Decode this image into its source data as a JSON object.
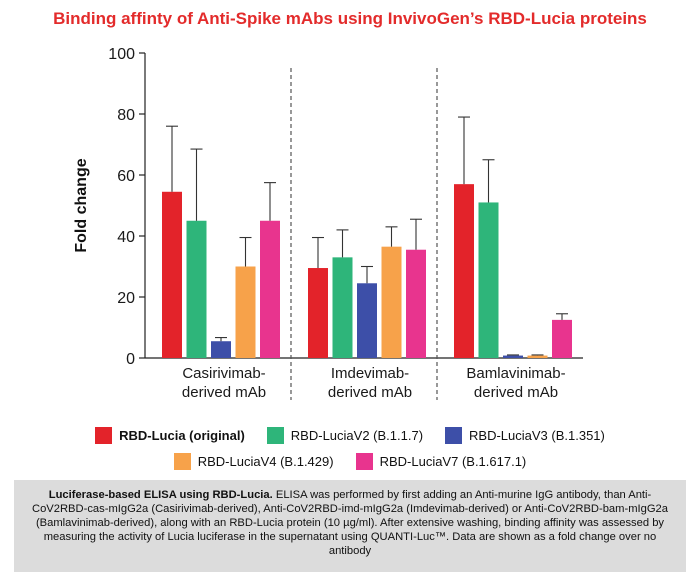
{
  "title": "Binding affinty of Anti-Spike mAbs using InvivoGen’s RBD-Lucia proteins",
  "chart_data": {
    "type": "bar",
    "ylabel": "Fold change",
    "xlabel": "",
    "ylim": [
      0,
      100
    ],
    "yticks": [
      0,
      20,
      40,
      60,
      80,
      100
    ],
    "grid": false,
    "legend_position": "bottom",
    "categories": [
      {
        "line1": "Casirivimab-",
        "line2": "derived mAb"
      },
      {
        "line1": "Imdevimab-",
        "line2": "derived mAb"
      },
      {
        "line1": "Bamlavinimab-",
        "line2": "derived mAb"
      }
    ],
    "series": [
      {
        "name": "RBD-Lucia (original)",
        "color": "#e3232a",
        "values": [
          54.5,
          29.5,
          57.0
        ],
        "errors": [
          21.5,
          10.0,
          22.0
        ]
      },
      {
        "name": "RBD-LuciaV2 (B.1.1.7)",
        "color": "#2eb57a",
        "values": [
          45.0,
          33.0,
          51.0
        ],
        "errors": [
          23.5,
          9.0,
          14.0
        ]
      },
      {
        "name": "RBD-LuciaV3 (B.1.351)",
        "color": "#3d4fa8",
        "values": [
          5.5,
          24.5,
          0.8
        ],
        "errors": [
          1.2,
          5.5,
          0.2
        ]
      },
      {
        "name": "RBD-LuciaV4 (B.1.429)",
        "color": "#f7a24a",
        "values": [
          30.0,
          36.5,
          0.8
        ],
        "errors": [
          9.5,
          6.5,
          0.2
        ]
      },
      {
        "name": "RBD-LuciaV7 (B.1.617.1)",
        "color": "#e8348e",
        "values": [
          45.0,
          35.5,
          12.5
        ],
        "errors": [
          12.5,
          10.0,
          2.0
        ]
      }
    ]
  },
  "caption": {
    "bold": "Luciferase-based ELISA using RBD-Lucia.",
    "text": " ELISA was performed by first adding an Anti-murine IgG antibody, than Anti-CoV2RBD-cas-mIgG2a (Casirivimab-derived), Anti-CoV2RBD-imd-mIgG2a (Imdevimab-derived) or Anti-CoV2RBD-bam-mIgG2a (Bamlavinimab-derived), along with an RBD-Lucia protein (10 µg/ml). After extensive washing, binding affinity was assessed by measuring the activity of Lucia luciferase in the supernatant using QUANTI-Luc™. Data are shown as a fold change over no antibody"
  }
}
